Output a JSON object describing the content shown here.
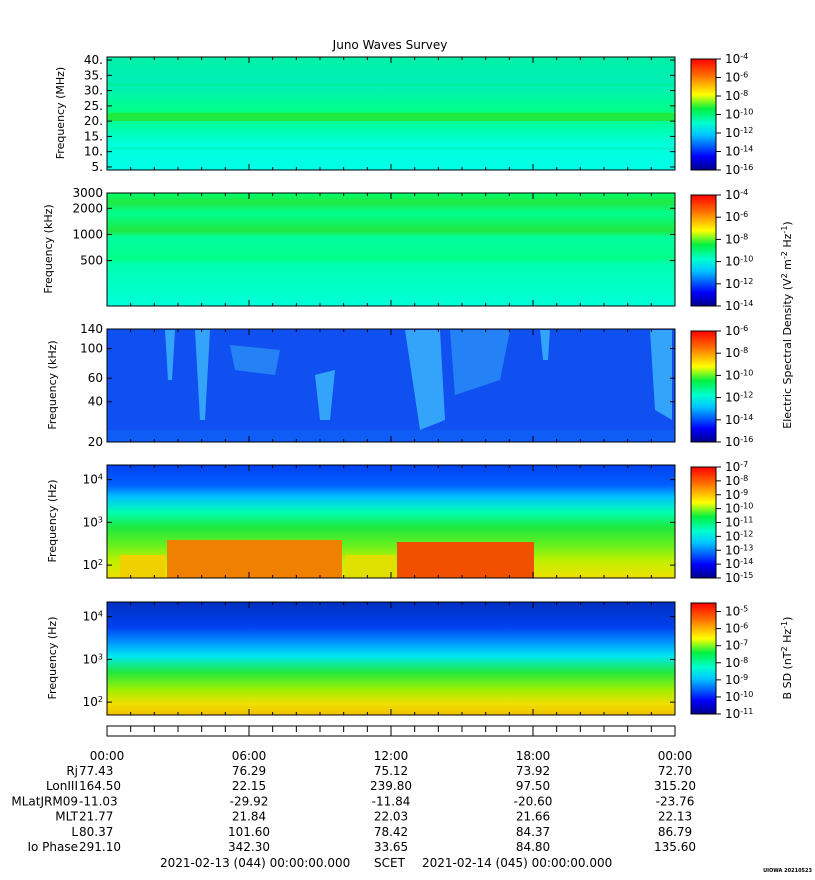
{
  "title": "Juno Waves Survey",
  "credit": "UIOWA 20210523",
  "colors": {
    "axis": "#000000",
    "background": "#ffffff"
  },
  "chart_data": [
    {
      "type": "heatmap",
      "ylabel": "Frequency (MHz)",
      "ylim": [
        4,
        41
      ],
      "yscale": "linear",
      "yticks": [
        "5.",
        "10.",
        "15.",
        "20.",
        "25.",
        "30.",
        "35.",
        "40."
      ],
      "colorbar": {
        "min_exp": -16,
        "max_exp": -4,
        "labels": [
          "10-16",
          "10-14",
          "10-12",
          "10-10",
          "10-8",
          "10-6",
          "10-4"
        ]
      }
    },
    {
      "type": "heatmap",
      "ylabel": "Frequency (kHz)",
      "ylim": [
        150,
        3000
      ],
      "yscale": "log",
      "yticks": [
        "500",
        "1000",
        "2000",
        "3000"
      ],
      "colorbar": {
        "min_exp": -14,
        "max_exp": -4,
        "labels": [
          "10-14",
          "10-12",
          "10-10",
          "10-8",
          "10-6",
          "10-4"
        ]
      }
    },
    {
      "type": "heatmap",
      "ylabel": "Frequency (kHz)",
      "ylim": [
        20,
        140
      ],
      "yscale": "log",
      "yticks": [
        "20",
        "40",
        "60",
        "100",
        "140"
      ],
      "colorbar": {
        "min_exp": -16,
        "max_exp": -6,
        "labels": [
          "10-16",
          "10-14",
          "10-12",
          "10-10",
          "10-8",
          "10-6"
        ]
      }
    },
    {
      "type": "heatmap",
      "ylabel": "Frequency (Hz)",
      "ylim": [
        50,
        22000
      ],
      "yscale": "log",
      "yticks": [
        "10 2",
        "10 3",
        "10 4"
      ],
      "colorbar": {
        "min_exp": -15,
        "max_exp": -7,
        "labels": [
          "10-15",
          "10-14",
          "10-13",
          "10-12",
          "10-11",
          "10-10",
          "10-9",
          "10-8",
          "10-7"
        ]
      }
    },
    {
      "type": "heatmap",
      "ylabel": "Frequency (Hz)",
      "ylim": [
        50,
        22000
      ],
      "yscale": "log",
      "yticks": [
        "10 2",
        "10 3",
        "10 4"
      ],
      "colorbar": {
        "min_exp": -11,
        "max_exp": -4.5,
        "labels": [
          "10-11",
          "10-10",
          "10-9",
          "10-8",
          "10-7",
          "10-6",
          "10-5"
        ]
      }
    }
  ],
  "colorbar_titles": {
    "electric": "Electric Spectral Density (V2 m-2 Hz-1)",
    "magnetic": "B SD (nT2 Hz-1)"
  },
  "time_axis": {
    "ticks": [
      "00:00",
      "06:00",
      "12:00",
      "18:00",
      "00:00"
    ],
    "rows": [
      {
        "label": "Rj",
        "values": [
          "77.43",
          "76.29",
          "75.12",
          "73.92",
          "72.70"
        ]
      },
      {
        "label": "LonIII",
        "values": [
          "164.50",
          "22.15",
          "239.80",
          "97.50",
          "315.20"
        ]
      },
      {
        "label": "MLatJRM09",
        "values": [
          "-11.03",
          "-29.92",
          "-11.84",
          "-20.60",
          "-23.76"
        ]
      },
      {
        "label": "MLT",
        "values": [
          "21.77",
          "21.84",
          "22.03",
          "21.66",
          "22.13"
        ]
      },
      {
        "label": "L",
        "values": [
          "80.37",
          "101.60",
          "78.42",
          "84.37",
          "86.79"
        ]
      },
      {
        "label": "Io Phase",
        "values": [
          "291.10",
          "342.30",
          "33.65",
          "84.80",
          "135.60"
        ]
      }
    ],
    "footer_start": "2021-02-13 (044) 00:00:00.000",
    "footer_mid": "SCET",
    "footer_end": "2021-02-14 (045) 00:00:00.000"
  }
}
